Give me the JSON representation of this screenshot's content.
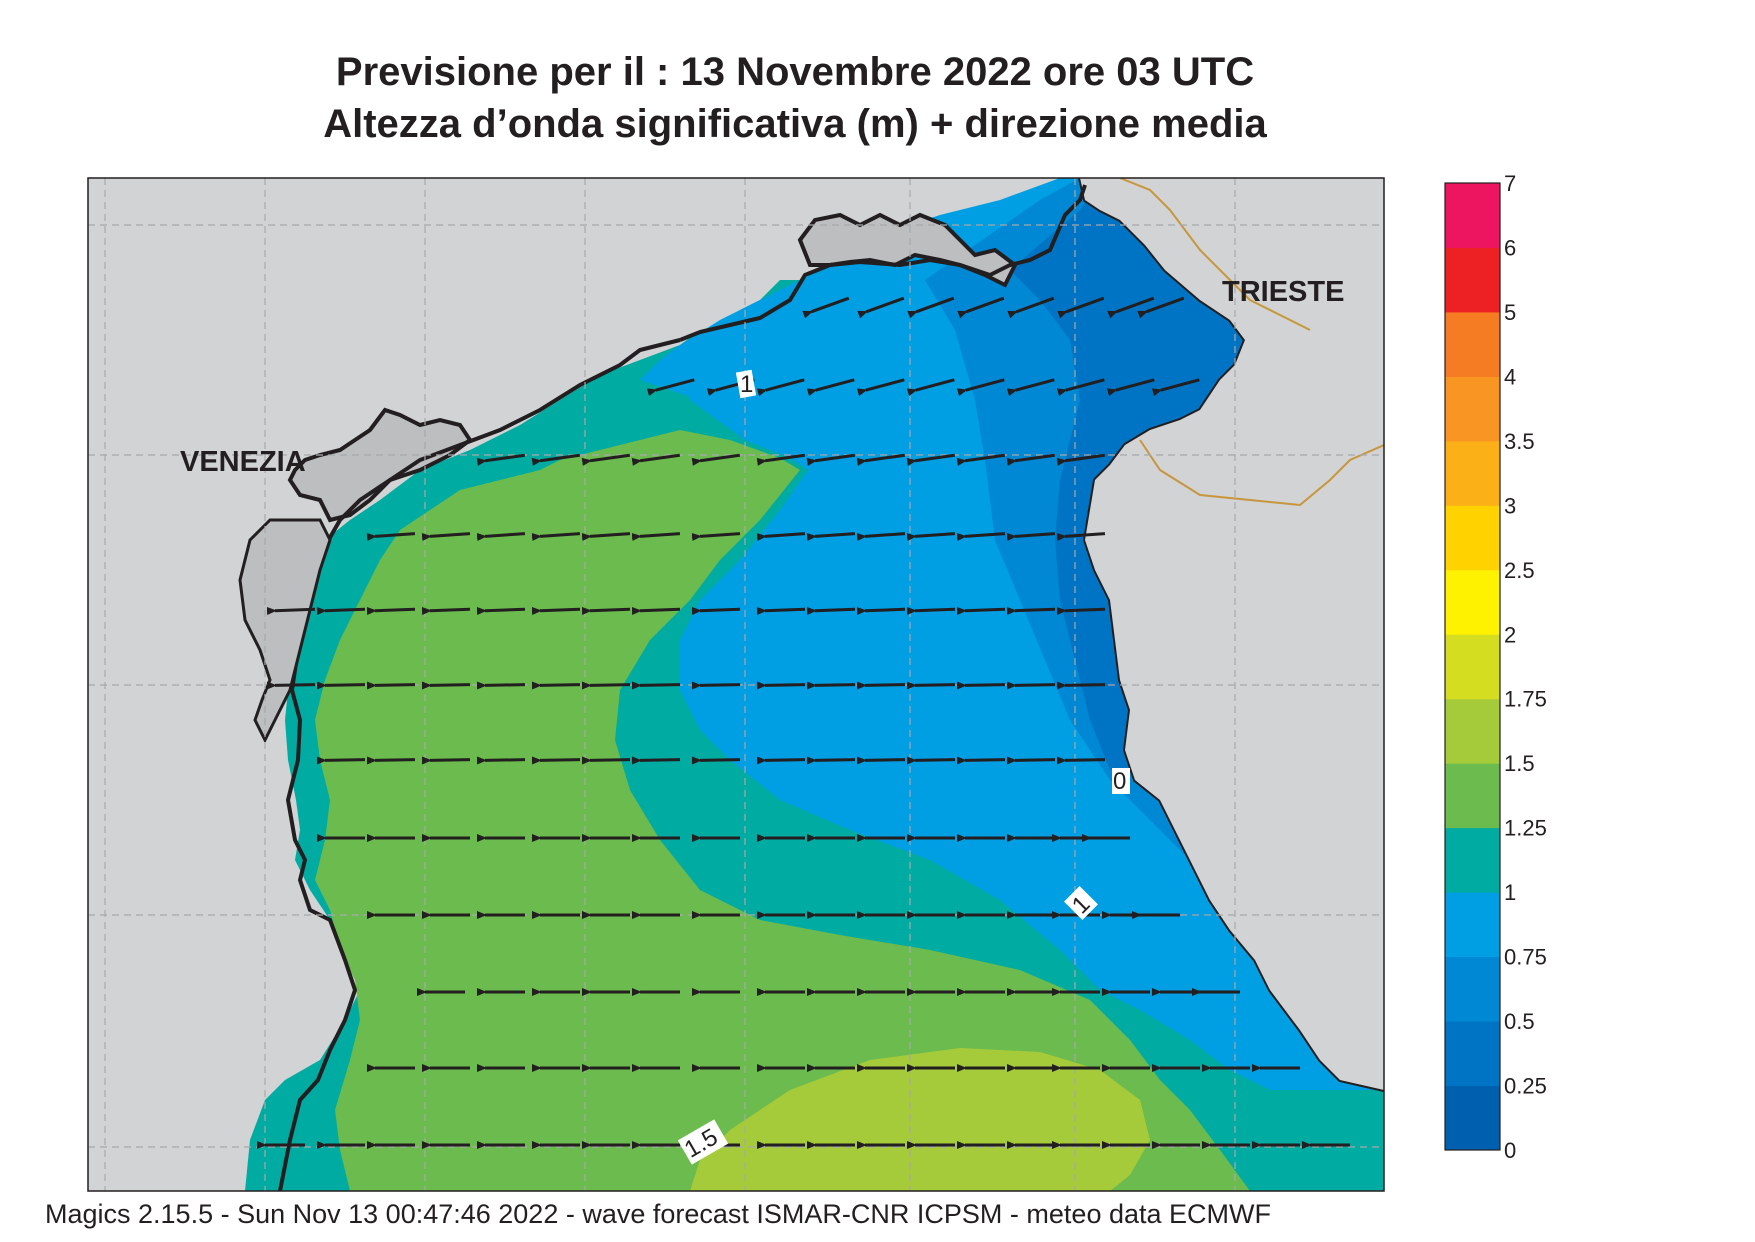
{
  "title_line1": "Previsione per il  :  13 Novembre  2022   ore 03 UTC",
  "title_line2": "Altezza d’onda significativa (m) + direzione media",
  "footer": "Magics 2.15.5 - Sun Nov 13 00:47:46 2022 - wave forecast  ISMAR-CNR  ICPSM - meteo data   ECMWF",
  "map_labels": {
    "venezia": "VENEZIA",
    "trieste": "TRIESTE",
    "contour_1_north": "1",
    "contour_0": "0",
    "contour_1_east": "1",
    "contour_1_5": "1.5"
  },
  "legend": {
    "levels": [
      "0",
      "0.25",
      "0.5",
      "0.75",
      "1",
      "1.25",
      "1.5",
      "1.75",
      "2",
      "2.5",
      "3",
      "3.5",
      "4",
      "5",
      "6",
      "7"
    ],
    "colors": [
      "#0060b0",
      "#0074c4",
      "#0088d4",
      "#009ee2",
      "#00aba2",
      "#6cbb4e",
      "#a6cb3a",
      "#d4dd20",
      "#fff200",
      "#ffd200",
      "#fcb018",
      "#f99522",
      "#f57c22",
      "#ed2124",
      "#ed1460"
    ]
  },
  "wave_direction": "westward (arrows pointing west, rotating to south-west in the northern gulf)"
}
